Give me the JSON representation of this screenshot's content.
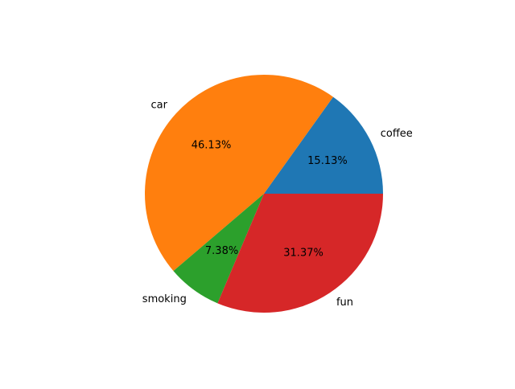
{
  "chart_data": {
    "type": "pie",
    "title": "",
    "categories": [
      "coffee",
      "car",
      "smoking",
      "fun"
    ],
    "values": [
      15.13,
      46.13,
      7.38,
      31.37
    ],
    "value_labels": [
      "15.13%",
      "46.13%",
      "7.38%",
      "31.37%"
    ],
    "colors": [
      "#1f77b4",
      "#ff7f0e",
      "#2ca02c",
      "#d62728"
    ],
    "start_angle": "0 degrees (3 o'clock)",
    "direction": "counterclockwise",
    "legend": "none"
  }
}
